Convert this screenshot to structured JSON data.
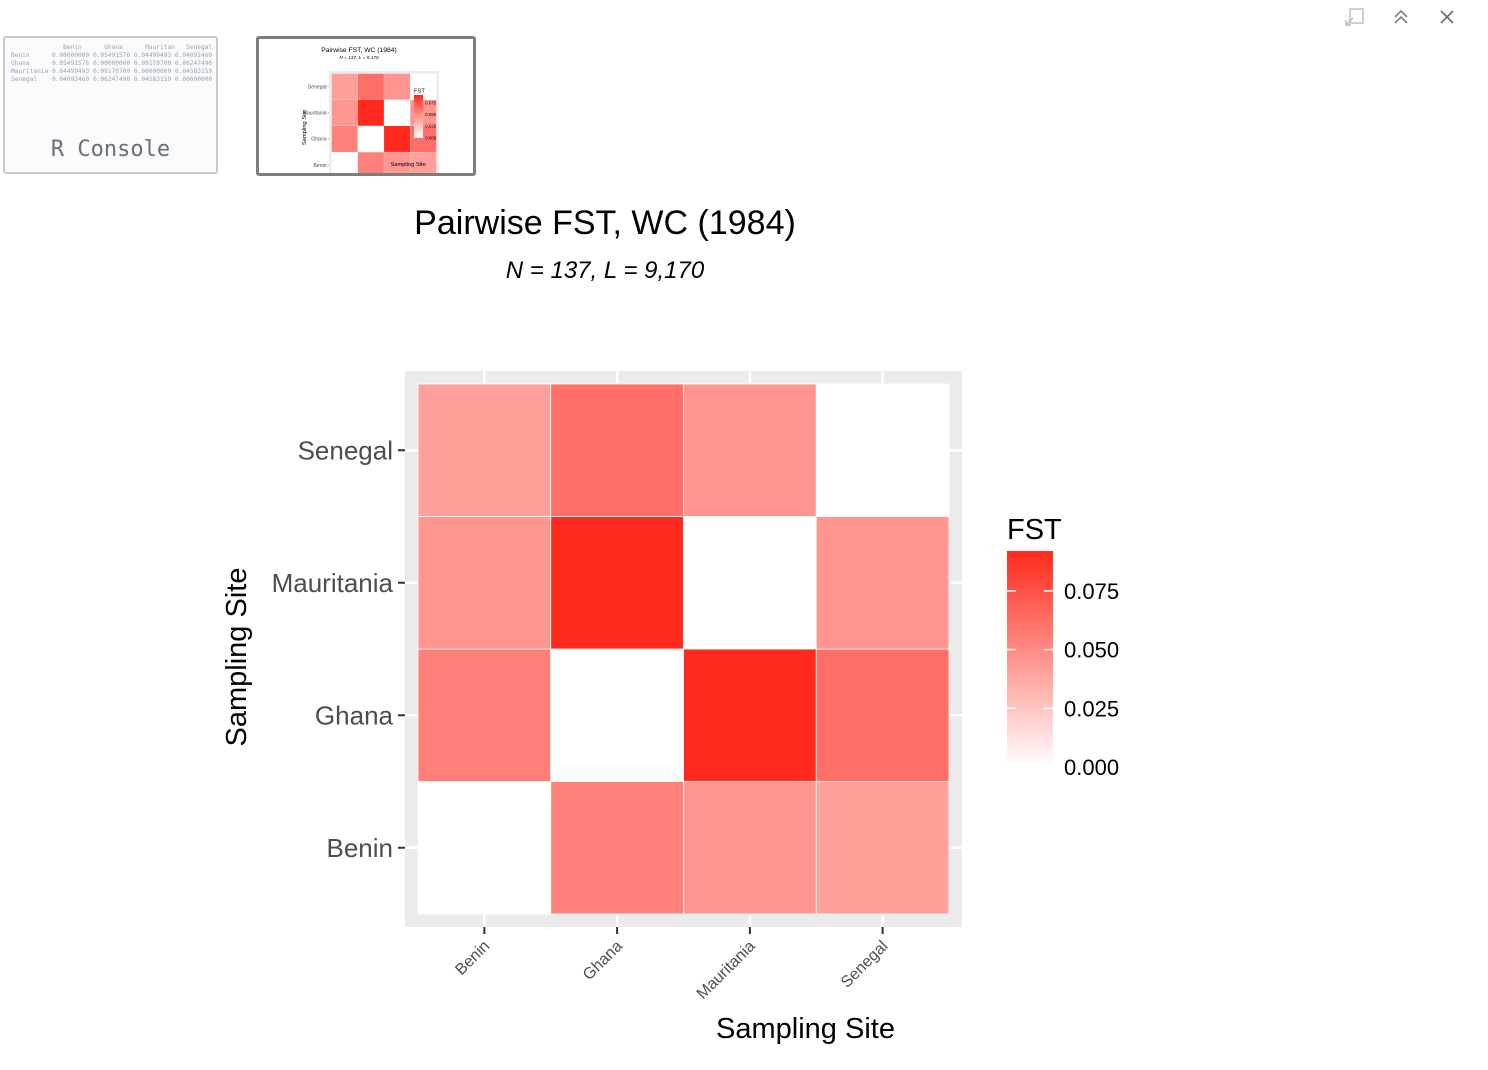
{
  "window": {
    "icons": [
      "popout-icon",
      "collapse-icon",
      "close-icon"
    ]
  },
  "thumbnails": {
    "console": {
      "label": "R Console",
      "table_header": [
        "Benin",
        "Ghana",
        "Mauritania",
        "Senegal"
      ],
      "table_rows": [
        [
          "Benin",
          "0.00000000",
          "0.05491576",
          "0.04499493",
          "0.04092460"
        ],
        [
          "Ghana",
          "0.05491576",
          "0.00000000",
          "0.09170700",
          "0.06247496"
        ],
        [
          "Mauritania",
          "0.04499493",
          "0.09170700",
          "0.00000000",
          "0.04583159"
        ],
        [
          "Senegal",
          "0.04092460",
          "0.06247496",
          "0.04583159",
          "0.00000000"
        ]
      ]
    },
    "plot": {
      "selected": true
    }
  },
  "chart_data": {
    "type": "heatmap",
    "title": "Pairwise FST, WC (1984)",
    "subtitle": "N = 137, L = 9,170",
    "xlabel": "Sampling Site",
    "ylabel": "Sampling Site",
    "x_categories": [
      "Benin",
      "Ghana",
      "Mauritania",
      "Senegal"
    ],
    "y_categories": [
      "Benin",
      "Ghana",
      "Mauritania",
      "Senegal"
    ],
    "values": [
      [
        0.0,
        0.055,
        0.045,
        0.041
      ],
      [
        0.055,
        0.0,
        0.092,
        0.062
      ],
      [
        0.045,
        0.092,
        0.0,
        0.046
      ],
      [
        0.041,
        0.062,
        0.046,
        0.0
      ]
    ],
    "legend": {
      "title": "FST",
      "breaks": [
        "0.000",
        "0.025",
        "0.050",
        "0.075"
      ],
      "break_values": [
        0.0,
        0.025,
        0.05,
        0.075
      ],
      "range": [
        0.0,
        0.092
      ],
      "low_color": "#ffffff",
      "high_color": "#ff2a1d",
      "position": "right"
    },
    "panel_background": "#ebebeb",
    "grid": true
  }
}
